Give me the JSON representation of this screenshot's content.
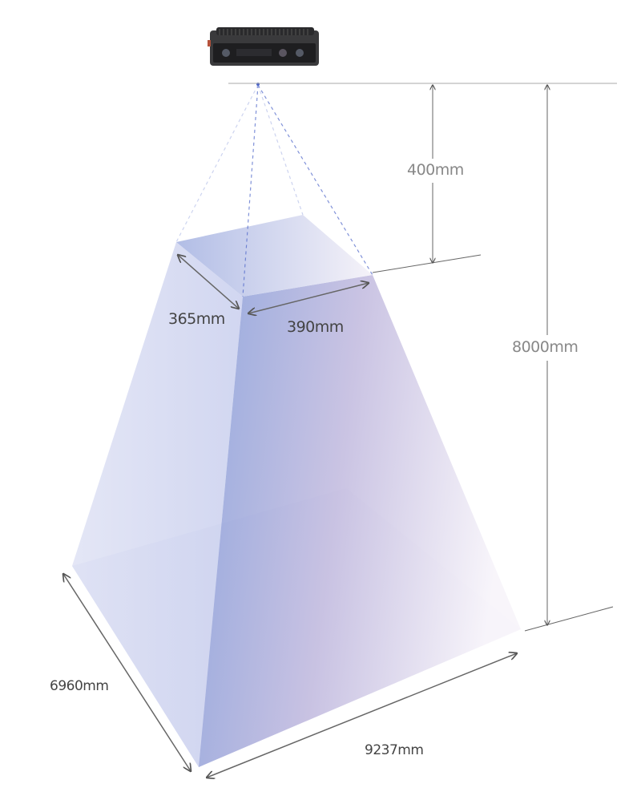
{
  "labels": {
    "camera_height": "400mm",
    "total_height": "8000mm",
    "near_depth": "365mm",
    "near_width": "390mm",
    "far_depth": "6960mm",
    "far_width": "9237mm"
  },
  "colors": {
    "volume_blue": "#7f98d6",
    "volume_light": "#f4f0f8",
    "dimension_line": "#555555",
    "ray_dash": "#4a63c8"
  }
}
